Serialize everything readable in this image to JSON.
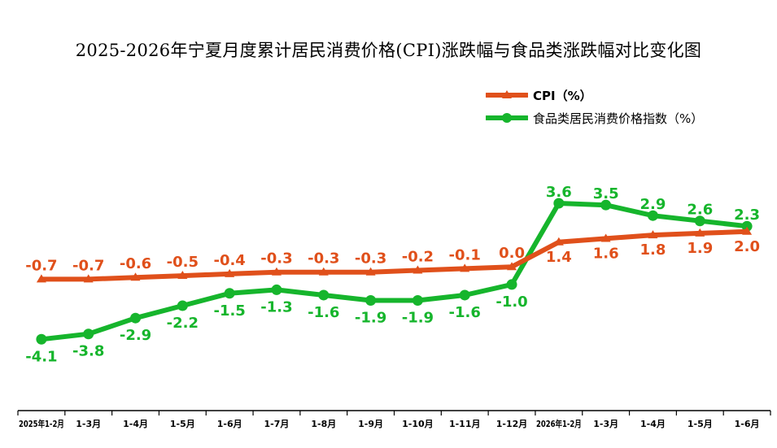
{
  "chart_data": {
    "type": "line",
    "title": "2025-2026年宁夏月度累计居民消费价格(CPI)涨跌幅与食品类涨跌幅对比变化图",
    "categories": [
      "2025年1-2月",
      "1-3月",
      "1-4月",
      "1-5月",
      "1-6月",
      "1-7月",
      "1-8月",
      "1-9月",
      "1-10月",
      "1-11月",
      "1-12月",
      "2026年1-2月",
      "1-3月",
      "1-4月",
      "1-5月",
      "1-6月"
    ],
    "series": [
      {
        "name": "CPI（%）",
        "color": "#e0501b",
        "marker": "triangle",
        "values": [
          -0.7,
          -0.7,
          -0.6,
          -0.5,
          -0.4,
          -0.3,
          -0.3,
          -0.3,
          -0.2,
          -0.1,
          0.0,
          1.4,
          1.6,
          1.8,
          1.9,
          2.0
        ],
        "labels": [
          "-0.7",
          "-0.7",
          "-0.6",
          "-0.5",
          "-0.4",
          "-0.3",
          "-0.3",
          "-0.3",
          "-0.2",
          "-0.1",
          "0.0",
          "1.4",
          "1.6",
          "1.8",
          "1.9",
          "2.0"
        ]
      },
      {
        "name": "食品类居民消费价格指数（%）",
        "color": "#16b52c",
        "marker": "circle",
        "values": [
          -4.1,
          -3.8,
          -2.9,
          -2.2,
          -1.5,
          -1.3,
          -1.6,
          -1.9,
          -1.9,
          -1.6,
          -1.0,
          3.6,
          3.5,
          2.9,
          2.6,
          2.3
        ],
        "labels": [
          "-4.1",
          "-3.8",
          "-2.9",
          "-2.2",
          "-1.5",
          "-1.3",
          "-1.6",
          "-1.9",
          "-1.9",
          "-1.6",
          "-1.0",
          "3.6",
          "3.5",
          "2.9",
          "2.6",
          "2.3"
        ]
      }
    ],
    "xlabel": "",
    "ylabel": "",
    "grid": false,
    "legend_position": "top-right"
  }
}
